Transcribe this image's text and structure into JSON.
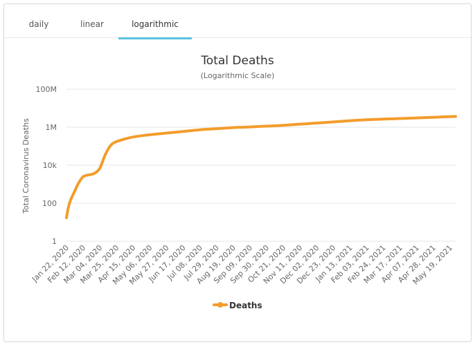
{
  "tabs": [
    "daily",
    "linear",
    "logarithmic"
  ],
  "active_tab": "logarithmic",
  "chart_data": {
    "type": "line",
    "title": "Total Deaths",
    "subtitle": "(Logarithmic Scale)",
    "ylabel": "Total Coronavirus Deaths",
    "yscale": "log",
    "ylim": [
      1,
      100000000
    ],
    "y_ticks": [
      {
        "value": 1,
        "label": "1"
      },
      {
        "value": 100,
        "label": "100"
      },
      {
        "value": 10000,
        "label": "10k"
      },
      {
        "value": 1000000,
        "label": "1M"
      },
      {
        "value": 100000000,
        "label": "100M"
      }
    ],
    "x_tick_labels": [
      "Jan 22, 2020",
      "Feb 12, 2020",
      "Mar 04, 2020",
      "Mar 25, 2020",
      "Apr 15, 2020",
      "May 06, 2020",
      "May 27, 2020",
      "Jun 17, 2020",
      "Jul 08, 2020",
      "Jul 29, 2020",
      "Aug 19, 2020",
      "Sep 09, 2020",
      "Sep 30, 2020",
      "Oct 21, 2020",
      "Nov 11, 2020",
      "Dec 02, 2020",
      "Dec 23, 2020",
      "Jan 13, 2021",
      "Feb 03, 2021",
      "Feb 24, 2021",
      "Mar 17, 2021",
      "Apr 07, 2021",
      "Apr 28, 2021",
      "May 19, 2021"
    ],
    "series": [
      {
        "name": "Deaths",
        "color": "#f39c2b",
        "x": [
          0,
          2,
          5,
          10,
          15,
          21,
          28,
          35,
          42,
          49,
          56,
          63,
          70,
          77,
          84,
          98,
          112,
          126,
          140,
          154,
          168,
          182,
          196,
          210,
          224,
          238,
          252,
          266,
          280,
          294,
          308,
          322,
          336,
          350,
          364,
          378,
          392,
          406,
          420,
          434,
          448,
          462,
          476,
          490
        ],
        "values": [
          17,
          50,
          140,
          400,
          1100,
          2500,
          3100,
          3700,
          7000,
          37000,
          114000,
          175000,
          217000,
          263000,
          305000,
          371000,
          431000,
          492000,
          558000,
          635000,
          734000,
          803000,
          873000,
          951000,
          1000000,
          1071000,
          1133000,
          1208000,
          1320000,
          1440000,
          1580000,
          1730000,
          1890000,
          2090000,
          2300000,
          2470000,
          2600000,
          2720000,
          2850000,
          3000000,
          3150000,
          3320000,
          3500000,
          3650000
        ]
      }
    ],
    "x_day_range": [
      0,
      490
    ],
    "legend": "bottom-center"
  }
}
